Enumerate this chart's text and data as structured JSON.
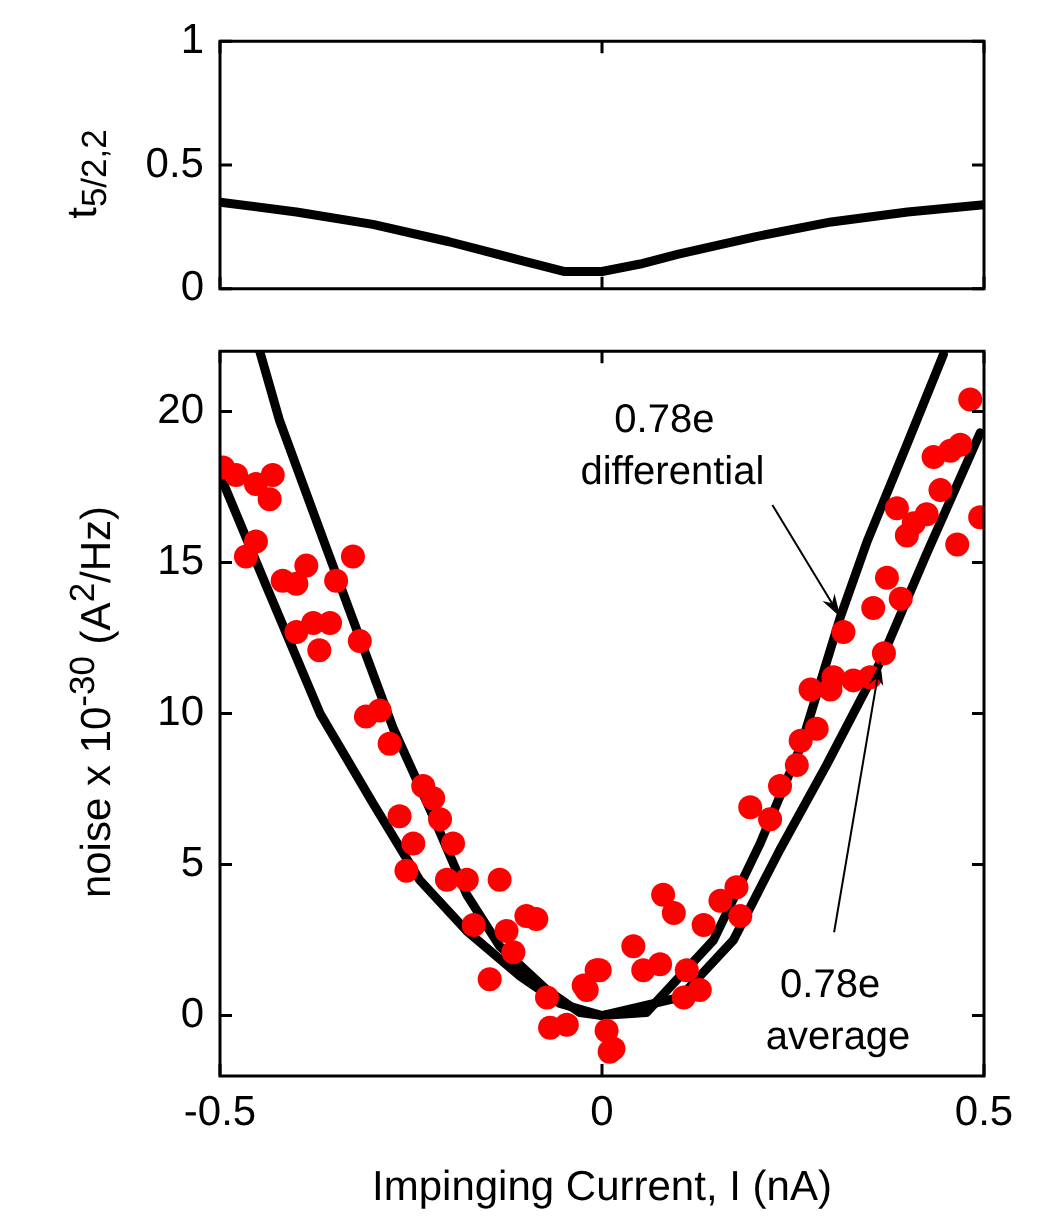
{
  "chart_data": [
    {
      "type": "line",
      "ylabel": "t$_{5/2,2}$",
      "xlim": [
        -0.5,
        0.5
      ],
      "xticks": [
        -0.5,
        0,
        0.5
      ],
      "ylim": [
        0,
        1
      ],
      "yticks": [
        0,
        0.5,
        1
      ],
      "tick_labels": "y",
      "series": [
        {
          "color": "#000000",
          "marker": "none",
          "x": [
            -0.5,
            -0.4,
            -0.3,
            -0.2,
            -0.1,
            -0.05,
            0,
            0.05,
            0.1,
            0.2,
            0.3,
            0.4,
            0.5
          ],
          "values": [
            0.35,
            0.31,
            0.26,
            0.19,
            0.11,
            0.07,
            0.07,
            0.1,
            0.14,
            0.21,
            0.27,
            0.31,
            0.34
          ]
        }
      ]
    },
    {
      "type": "scatter",
      "xlabel": "Impinging Current, I (nA)",
      "ylabel": "noise x 10$^{-30}$ (A$^{2}$/Hz)",
      "xlim": [
        -0.5,
        0.5
      ],
      "xticks": [
        -0.5,
        0,
        0.5
      ],
      "ylim": [
        -2,
        22
      ],
      "yticks": [
        0,
        5,
        10,
        15,
        20
      ],
      "series": [
        {
          "type": "scatter",
          "color": "#ff0000",
          "marker": "circle",
          "x": [
            -0.496,
            -0.479,
            -0.453,
            -0.431,
            -0.435,
            -0.466,
            -0.453,
            -0.418,
            -0.4,
            -0.387,
            -0.348,
            -0.326,
            -0.4,
            -0.378,
            -0.356,
            -0.37,
            -0.317,
            -0.309,
            -0.291,
            -0.278,
            -0.234,
            -0.221,
            -0.212,
            -0.265,
            -0.247,
            -0.256,
            -0.195,
            -0.203,
            -0.177,
            -0.168,
            -0.134,
            -0.147,
            -0.125,
            -0.116,
            -0.099,
            -0.086,
            -0.072,
            -0.068,
            -0.046,
            -0.024,
            -0.007,
            0.006,
            0.01,
            -0.02,
            0.015,
            -0.003,
            0.041,
            0.054,
            0.076,
            0.107,
            0.128,
            0.111,
            0.08,
            0.094,
            0.133,
            0.155,
            0.176,
            0.181,
            0.194,
            0.22,
            0.233,
            0.255,
            0.26,
            0.281,
            0.273,
            0.299,
            0.303,
            0.329,
            0.316,
            0.351,
            0.369,
            0.355,
            0.373,
            0.391,
            0.386,
            0.399,
            0.408,
            0.425,
            0.443,
            0.434,
            0.456,
            0.469,
            0.465,
            0.482,
            0.495
          ],
          "values": [
            18.15,
            17.9,
            17.6,
            17.9,
            17.1,
            15.2,
            15.7,
            14.4,
            14.3,
            14.9,
            14.4,
            15.2,
            12.7,
            13,
            13,
            12.1,
            12.4,
            9.9,
            10.1,
            9,
            7.6,
            7.2,
            6.5,
            6.6,
            5.7,
            4.8,
            5.7,
            4.5,
            4.5,
            3,
            4.5,
            1.2,
            2.8,
            2.1,
            3.3,
            3.2,
            0.6,
            -0.4,
            -0.3,
            1,
            1.5,
            -0.5,
            -1.2,
            0.85,
            -1.1,
            1.5,
            2.3,
            1.5,
            1.7,
            0.6,
            0.85,
            1.5,
            4,
            3.4,
            3,
            3.8,
            4.25,
            3.3,
            6.9,
            6.5,
            7.6,
            8.3,
            9.1,
            9.5,
            10.8,
            10.8,
            11.2,
            11.1,
            12.7,
            11.2,
            12,
            13.5,
            14.5,
            13.8,
            16.8,
            15.9,
            16.3,
            16.6,
            17.4,
            18.5,
            18.7,
            18.9,
            15.6,
            20.4,
            16.5
          ]
        },
        {
          "type": "line",
          "color": "#000000",
          "marker": "none",
          "x": [
            -0.448,
            -0.422,
            -0.361,
            -0.317,
            -0.273,
            -0.221,
            -0.177,
            -0.134,
            -0.072,
            -0.029,
            0,
            0.058,
            0.146,
            0.207,
            0.26,
            0.312,
            0.347,
            0.399,
            0.447
          ],
          "values": [
            22,
            19.7,
            15.5,
            12.5,
            9.5,
            6.6,
            4,
            2.3,
            0.85,
            0.1,
            0,
            0.1,
            2.5,
            5.7,
            8.9,
            13.2,
            15.7,
            18.9,
            21.9
          ]
        },
        {
          "type": "line",
          "color": "#000000",
          "marker": "none",
          "x": [
            -0.5,
            -0.439,
            -0.369,
            -0.299,
            -0.239,
            -0.177,
            -0.107,
            -0.055,
            0,
            0.102,
            0.172,
            0.233,
            0.294,
            0.364,
            0.425,
            0.495
          ],
          "values": [
            17.9,
            14.2,
            10,
            7,
            4.5,
            2.8,
            1.3,
            0.4,
            0,
            0.6,
            2.5,
            5.5,
            8.3,
            11.7,
            15.3,
            19.3
          ]
        }
      ],
      "annotations": [
        {
          "text": "0.78e differential",
          "x": 0.312,
          "y": 13.2
        },
        {
          "text": "0.78e average",
          "x": 0.364,
          "y": 11.7
        }
      ]
    }
  ]
}
